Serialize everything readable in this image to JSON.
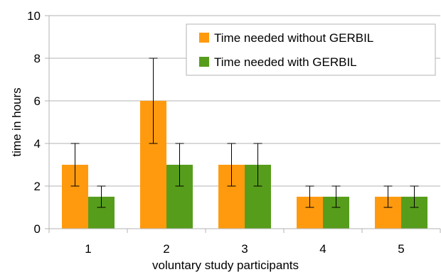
{
  "chart_data": {
    "type": "bar",
    "categories": [
      "1",
      "2",
      "3",
      "4",
      "5"
    ],
    "series": [
      {
        "name": "Time needed without GERBIL",
        "color": "#ff9a0f",
        "values": [
          3,
          6,
          3,
          1.5,
          1.5
        ],
        "error_low": [
          2,
          4,
          2,
          1,
          1
        ],
        "error_high": [
          4,
          8,
          4,
          2,
          2
        ]
      },
      {
        "name": "Time needed with GERBIL",
        "color": "#579d1c",
        "values": [
          1.5,
          3,
          3,
          1.5,
          1.5
        ],
        "error_low": [
          1,
          2,
          2,
          1,
          1
        ],
        "error_high": [
          2,
          4,
          4,
          2,
          2
        ]
      }
    ],
    "xlabel": "voluntary study participants",
    "ylabel": "time in hours",
    "ylim": [
      0,
      10
    ],
    "yticks": [
      "0",
      "2",
      "4",
      "6",
      "8",
      "10"
    ],
    "legend_position": "top-right",
    "grid": "horizontal"
  }
}
